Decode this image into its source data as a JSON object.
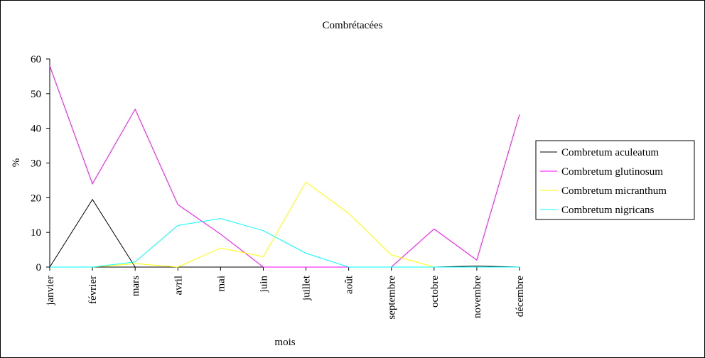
{
  "chart_data": {
    "type": "line",
    "title": "Combrétacées",
    "xlabel": "mois",
    "ylabel": "%",
    "ylim": [
      0,
      60
    ],
    "yticks": [
      0,
      10,
      20,
      30,
      40,
      50,
      60
    ],
    "grid": false,
    "legend_position": "right",
    "categories": [
      "janvier",
      "février",
      "mars",
      "avril",
      "mai",
      "juin",
      "juillet",
      "août",
      "septembre",
      "octobre",
      "novembre",
      "décembre"
    ],
    "series": [
      {
        "name": "Combretum aculeatum",
        "color": "#000000",
        "values": [
          0,
          19.5,
          0,
          0,
          0,
          0,
          0,
          0,
          0,
          0,
          0.3,
          0
        ]
      },
      {
        "name": "Combretum glutinosum",
        "color": "#ff00ff",
        "values": [
          58,
          24,
          45.5,
          18,
          9.5,
          0,
          0,
          0,
          0,
          11,
          2,
          44
        ]
      },
      {
        "name": "Combretum micranthum",
        "color": "#ffff00",
        "values": [
          0,
          0,
          1,
          0,
          5.5,
          3,
          24.5,
          15.5,
          3.5,
          0,
          0,
          0
        ]
      },
      {
        "name": "Combretum nigricans",
        "color": "#00ffff",
        "values": [
          0,
          0,
          1.5,
          12,
          14,
          10.5,
          4,
          0,
          0,
          0,
          0,
          0
        ]
      }
    ]
  }
}
